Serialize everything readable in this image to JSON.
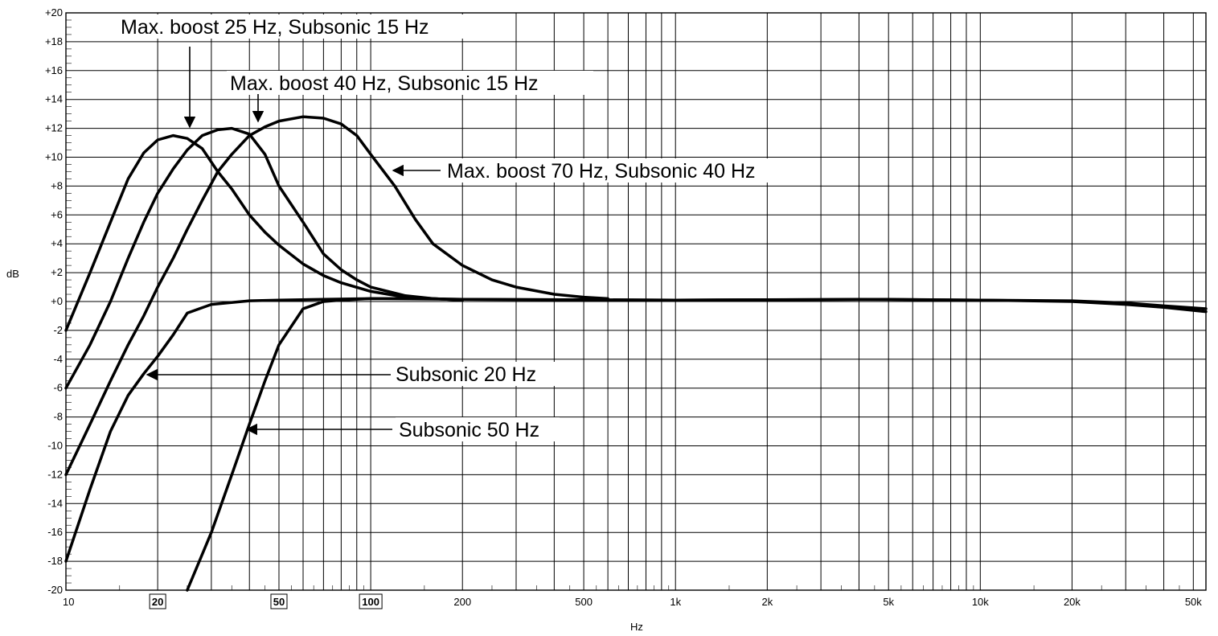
{
  "chart_data": {
    "type": "line",
    "xlabel": "Hz",
    "ylabel": "dB",
    "xscale": "log",
    "xlim": [
      10,
      55000
    ],
    "ylim": [
      -20,
      20
    ],
    "grid": true,
    "y_ticks": [
      {
        "value": 20,
        "label": "+20"
      },
      {
        "value": 18,
        "label": "+18"
      },
      {
        "value": 16,
        "label": "+16"
      },
      {
        "value": 14,
        "label": "+14"
      },
      {
        "value": 12,
        "label": "+12"
      },
      {
        "value": 10,
        "label": "+10"
      },
      {
        "value": 8,
        "label": "+8"
      },
      {
        "value": 6,
        "label": "+6"
      },
      {
        "value": 4,
        "label": "+4"
      },
      {
        "value": 2,
        "label": "+2"
      },
      {
        "value": 0,
        "label": "+0"
      },
      {
        "value": -2,
        "label": "-2"
      },
      {
        "value": -4,
        "label": "-4"
      },
      {
        "value": -6,
        "label": "-6"
      },
      {
        "value": -8,
        "label": "-8"
      },
      {
        "value": -10,
        "label": "-10"
      },
      {
        "value": -12,
        "label": "-12"
      },
      {
        "value": -14,
        "label": "-14"
      },
      {
        "value": -16,
        "label": "-16"
      },
      {
        "value": -18,
        "label": "-18"
      },
      {
        "value": -20,
        "label": "-20"
      }
    ],
    "x_ticks": [
      {
        "value": 10,
        "label": "10",
        "boxed": false
      },
      {
        "value": 20,
        "label": "20",
        "boxed": true
      },
      {
        "value": 50,
        "label": "50",
        "boxed": true
      },
      {
        "value": 100,
        "label": "100",
        "boxed": true
      },
      {
        "value": 200,
        "label": "200",
        "boxed": false
      },
      {
        "value": 500,
        "label": "500",
        "boxed": false
      },
      {
        "value": 1000,
        "label": "1k",
        "boxed": false
      },
      {
        "value": 2000,
        "label": "2k",
        "boxed": false
      },
      {
        "value": 5000,
        "label": "5k",
        "boxed": false
      },
      {
        "value": 10000,
        "label": "10k",
        "boxed": false
      },
      {
        "value": 20000,
        "label": "20k",
        "boxed": false
      },
      {
        "value": 50000,
        "label": "50k",
        "boxed": false
      }
    ],
    "series": [
      {
        "x": [
          10,
          12,
          14,
          16,
          18,
          20,
          22.5,
          25,
          28,
          31.5,
          35,
          40,
          45,
          50,
          60,
          70,
          80,
          100,
          130,
          160,
          200
        ],
        "y": [
          -2,
          2,
          5.5,
          8.5,
          10.3,
          11.2,
          11.5,
          11.3,
          10.6,
          9.0,
          7.8,
          6.0,
          4.8,
          3.9,
          2.6,
          1.8,
          1.3,
          0.7,
          0.3,
          0.2,
          0.1
        ]
      },
      {
        "x": [
          10,
          12,
          14,
          16,
          18,
          20,
          22.5,
          25,
          28,
          31.5,
          35,
          40,
          45,
          50,
          60,
          70,
          80,
          90,
          100,
          130,
          160,
          200
        ],
        "y": [
          -6,
          -3,
          0,
          3,
          5.5,
          7.5,
          9.2,
          10.5,
          11.5,
          11.9,
          12.0,
          11.6,
          10.2,
          8.0,
          5.5,
          3.3,
          2.2,
          1.5,
          1.0,
          0.4,
          0.2,
          0.1
        ]
      },
      {
        "x": [
          10,
          12,
          14,
          16,
          18,
          20,
          22.5,
          25,
          28,
          31.5,
          35,
          40,
          45,
          50,
          60,
          70,
          80,
          90,
          100,
          120,
          140,
          160,
          200,
          250,
          300,
          400,
          500,
          600
        ],
        "y": [
          -12,
          -8.5,
          -5.5,
          -3,
          -1,
          1,
          3,
          5,
          7,
          9,
          10.2,
          11.5,
          12.1,
          12.5,
          12.8,
          12.7,
          12.3,
          11.5,
          10.2,
          8,
          5.7,
          4,
          2.5,
          1.5,
          1.0,
          0.5,
          0.3,
          0.2
        ]
      },
      {
        "x": [
          10,
          12,
          14,
          16,
          18,
          20,
          22.5,
          25,
          30,
          40,
          50,
          70,
          100,
          200,
          1000,
          4000,
          10000,
          20000,
          30000,
          40000,
          55000
        ],
        "y": [
          -18,
          -13,
          -9,
          -6.5,
          -5,
          -3.8,
          -2.3,
          -0.8,
          -0.2,
          0.05,
          0.1,
          0.15,
          0.2,
          0.15,
          0.1,
          0.15,
          0.1,
          0,
          -0.2,
          -0.4,
          -0.7
        ]
      },
      {
        "x": [
          25,
          30,
          35,
          40,
          45,
          50,
          60,
          70,
          80,
          90,
          100,
          120,
          150,
          200,
          1000,
          5000,
          10000,
          20000,
          30000,
          40000,
          55000
        ],
        "y": [
          -20,
          -16,
          -12,
          -8.5,
          -5.5,
          -3,
          -0.5,
          0.0,
          0.1,
          0.15,
          0.2,
          0.2,
          0.2,
          0.15,
          0.1,
          0.15,
          0.1,
          0.05,
          -0.1,
          -0.3,
          -0.5
        ]
      }
    ],
    "annotations": [
      {
        "text": "Max. boost 25 Hz, Subsonic 15 Hz",
        "target_x": 25,
        "target_y": 11.5,
        "pointer": "down"
      },
      {
        "text": "Max. boost 40 Hz, Subsonic 15 Hz",
        "target_x": 41,
        "target_y": 12.0,
        "pointer": "down"
      },
      {
        "text": "Max. boost 70 Hz, Subsonic 40 Hz",
        "target_x": 110,
        "target_y": 9.0,
        "pointer": "left"
      },
      {
        "text": "Subsonic 20 Hz",
        "target_x": 18,
        "target_y": -5.2,
        "pointer": "left"
      },
      {
        "text": "Subsonic 50 Hz",
        "target_x": 43,
        "target_y": -9.0,
        "pointer": "left"
      }
    ]
  }
}
